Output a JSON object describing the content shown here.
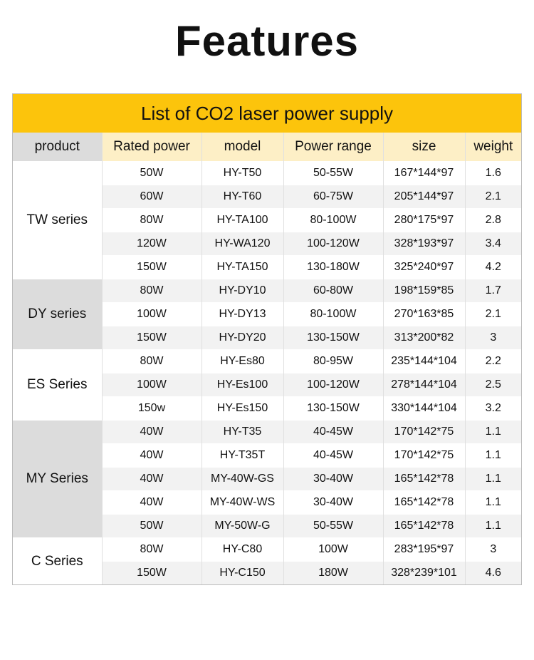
{
  "header": {
    "title": "Features"
  },
  "table": {
    "title": "List of CO2 laser power supply",
    "columns": [
      "product",
      "Rated power",
      "model",
      "Power range",
      "size",
      "weight"
    ],
    "groups": [
      {
        "name": "TW series",
        "rows": [
          [
            "50W",
            "HY-T50",
            "50-55W",
            "167*144*97",
            "1.6"
          ],
          [
            "60W",
            "HY-T60",
            "60-75W",
            "205*144*97",
            "2.1"
          ],
          [
            "80W",
            "HY-TA100",
            "80-100W",
            "280*175*97",
            "2.8"
          ],
          [
            "120W",
            "HY-WA120",
            "100-120W",
            "328*193*97",
            "3.4"
          ],
          [
            "150W",
            "HY-TA150",
            "130-180W",
            "325*240*97",
            "4.2"
          ]
        ]
      },
      {
        "name": "DY series",
        "rows": [
          [
            "80W",
            "HY-DY10",
            "60-80W",
            "198*159*85",
            "1.7"
          ],
          [
            "100W",
            "HY-DY13",
            "80-100W",
            "270*163*85",
            "2.1"
          ],
          [
            "150W",
            "HY-DY20",
            "130-150W",
            "313*200*82",
            "3"
          ]
        ]
      },
      {
        "name": "ES Series",
        "rows": [
          [
            "80W",
            "HY-Es80",
            "80-95W",
            "235*144*104",
            "2.2"
          ],
          [
            "100W",
            "HY-Es100",
            "100-120W",
            "278*144*104",
            "2.5"
          ],
          [
            "150w",
            "HY-Es150",
            "130-150W",
            "330*144*104",
            "3.2"
          ]
        ]
      },
      {
        "name": "MY Series",
        "rows": [
          [
            "40W",
            "HY-T35",
            "40-45W",
            "170*142*75",
            "1.1"
          ],
          [
            "40W",
            "HY-T35T",
            "40-45W",
            "170*142*75",
            "1.1"
          ],
          [
            "40W",
            "MY-40W-GS",
            "30-40W",
            "165*142*78",
            "1.1"
          ],
          [
            "40W",
            "MY-40W-WS",
            "30-40W",
            "165*142*78",
            "1.1"
          ],
          [
            "50W",
            "MY-50W-G",
            "50-55W",
            "165*142*78",
            "1.1"
          ]
        ]
      },
      {
        "name": "C Series",
        "rows": [
          [
            "80W",
            "HY-C80",
            "100W",
            "283*195*97",
            "3"
          ],
          [
            "150W",
            "HY-C150",
            "180W",
            "328*239*101",
            "4.6"
          ]
        ]
      }
    ]
  }
}
